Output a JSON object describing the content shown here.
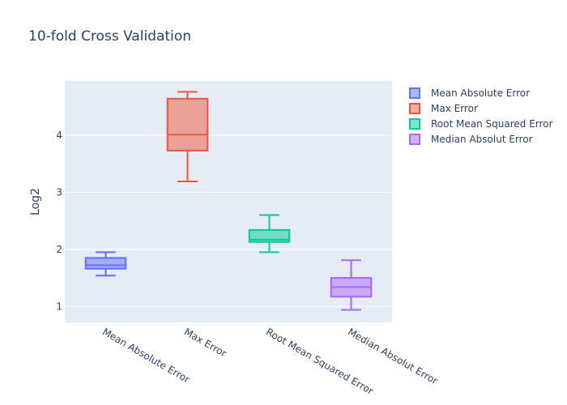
{
  "chart_data": {
    "type": "box",
    "title": "10-fold Cross Validation",
    "xlabel": "",
    "ylabel": "Log2",
    "ylim": [
      0.72,
      4.95
    ],
    "yticks": [
      1,
      2,
      3,
      4
    ],
    "grid": true,
    "legend_position": "top-right",
    "categories": [
      "Mean Absolute Error",
      "Max Error",
      "Root Mean Squared Error",
      "Median Absolut Error"
    ],
    "series": [
      {
        "name": "Mean Absolute Error",
        "color": "#636efa",
        "min": 1.54,
        "q1": 1.66,
        "median": 1.72,
        "q3": 1.85,
        "max": 1.95
      },
      {
        "name": "Max Error",
        "color": "#ef553b",
        "min": 3.19,
        "q1": 3.73,
        "median": 4.01,
        "q3": 4.64,
        "max": 4.76
      },
      {
        "name": "Root Mean Squared Error",
        "color": "#00cc96",
        "min": 1.95,
        "q1": 2.13,
        "median": 2.17,
        "q3": 2.34,
        "max": 2.6
      },
      {
        "name": "Median Absolut Error",
        "color": "#ab63fa",
        "min": 0.94,
        "q1": 1.17,
        "median": 1.34,
        "q3": 1.5,
        "max": 1.81
      }
    ]
  }
}
